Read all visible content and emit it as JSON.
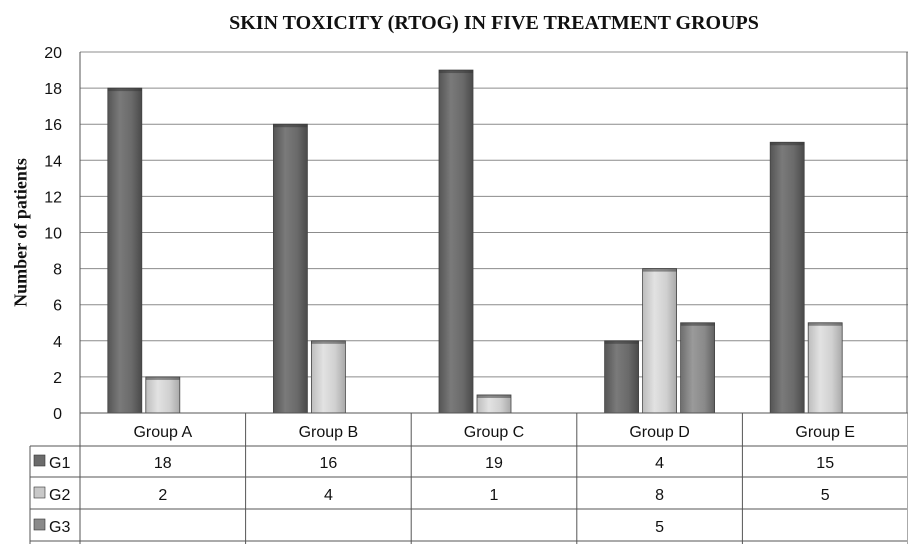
{
  "chart_data": {
    "type": "bar",
    "title": "SKIN TOXICITY (RTOG) IN FIVE TREATMENT GROUPS",
    "xlabel": "",
    "ylabel": "Number of patients",
    "ylim": [
      0,
      20
    ],
    "yticks": [
      0,
      2,
      4,
      6,
      8,
      10,
      12,
      14,
      16,
      18,
      20
    ],
    "grid": true,
    "legend": "data-table",
    "categories": [
      "Group A",
      "Group B",
      "Group C",
      "Group D",
      "Group E"
    ],
    "series": [
      {
        "name": "G1",
        "values": [
          18,
          16,
          19,
          4,
          15
        ],
        "color": "#6b6b6b"
      },
      {
        "name": "G2",
        "values": [
          2,
          4,
          1,
          8,
          5
        ],
        "color": "#c8c8c8"
      },
      {
        "name": "G3",
        "values": [
          null,
          null,
          null,
          5,
          null
        ],
        "color": "#8a8a8a"
      }
    ]
  }
}
